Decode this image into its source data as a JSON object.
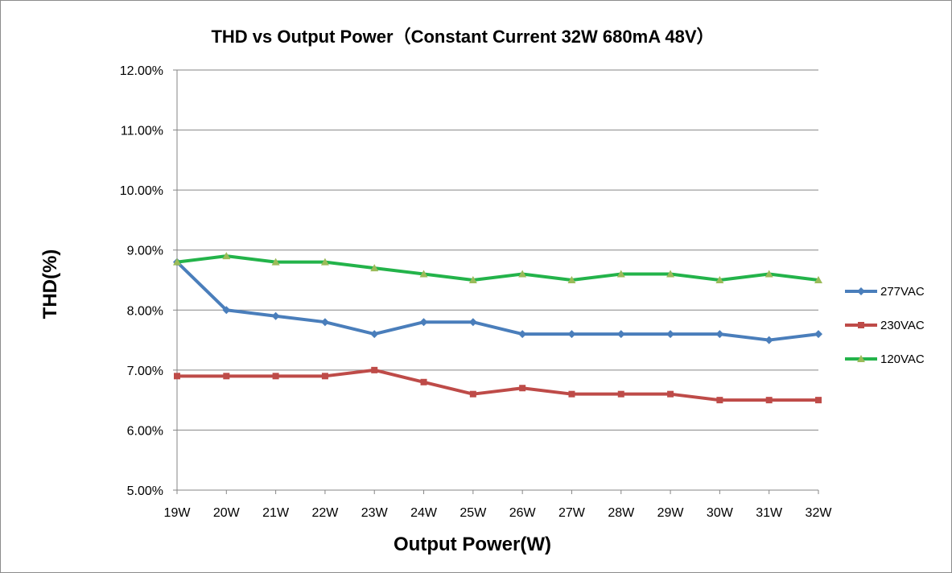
{
  "chart_data": {
    "type": "line",
    "title": "THD vs Output Power（Constant Current 32W  680mA 48V）",
    "xlabel": "Output Power(W)",
    "ylabel": "THD(%)",
    "categories": [
      "19W",
      "20W",
      "21W",
      "22W",
      "23W",
      "24W",
      "25W",
      "26W",
      "27W",
      "28W",
      "29W",
      "30W",
      "31W",
      "32W"
    ],
    "ylim": [
      5.0,
      12.0
    ],
    "yticks": [
      5.0,
      6.0,
      7.0,
      8.0,
      9.0,
      10.0,
      11.0,
      12.0
    ],
    "ytick_labels": [
      "5.00%",
      "6.00%",
      "7.00%",
      "8.00%",
      "9.00%",
      "10.00%",
      "11.00%",
      "12.00%"
    ],
    "grid": "horizontal",
    "legend_position": "right",
    "series": [
      {
        "name": "277VAC",
        "color": "#4a7ebb",
        "marker": "diamond",
        "values": [
          8.8,
          8.0,
          7.9,
          7.8,
          7.6,
          7.8,
          7.8,
          7.6,
          7.6,
          7.6,
          7.6,
          7.6,
          7.5,
          7.6
        ]
      },
      {
        "name": "230VAC",
        "color": "#be4b48",
        "marker": "square",
        "values": [
          6.9,
          6.9,
          6.9,
          6.9,
          7.0,
          6.8,
          6.6,
          6.7,
          6.6,
          6.6,
          6.6,
          6.5,
          6.5,
          6.5
        ]
      },
      {
        "name": "120VAC",
        "color": "#23b34a",
        "marker": "triangle",
        "marker_color": "#9bbb59",
        "values": [
          8.8,
          8.9,
          8.8,
          8.8,
          8.7,
          8.6,
          8.5,
          8.6,
          8.5,
          8.6,
          8.6,
          8.5,
          8.6,
          8.5
        ]
      }
    ]
  }
}
